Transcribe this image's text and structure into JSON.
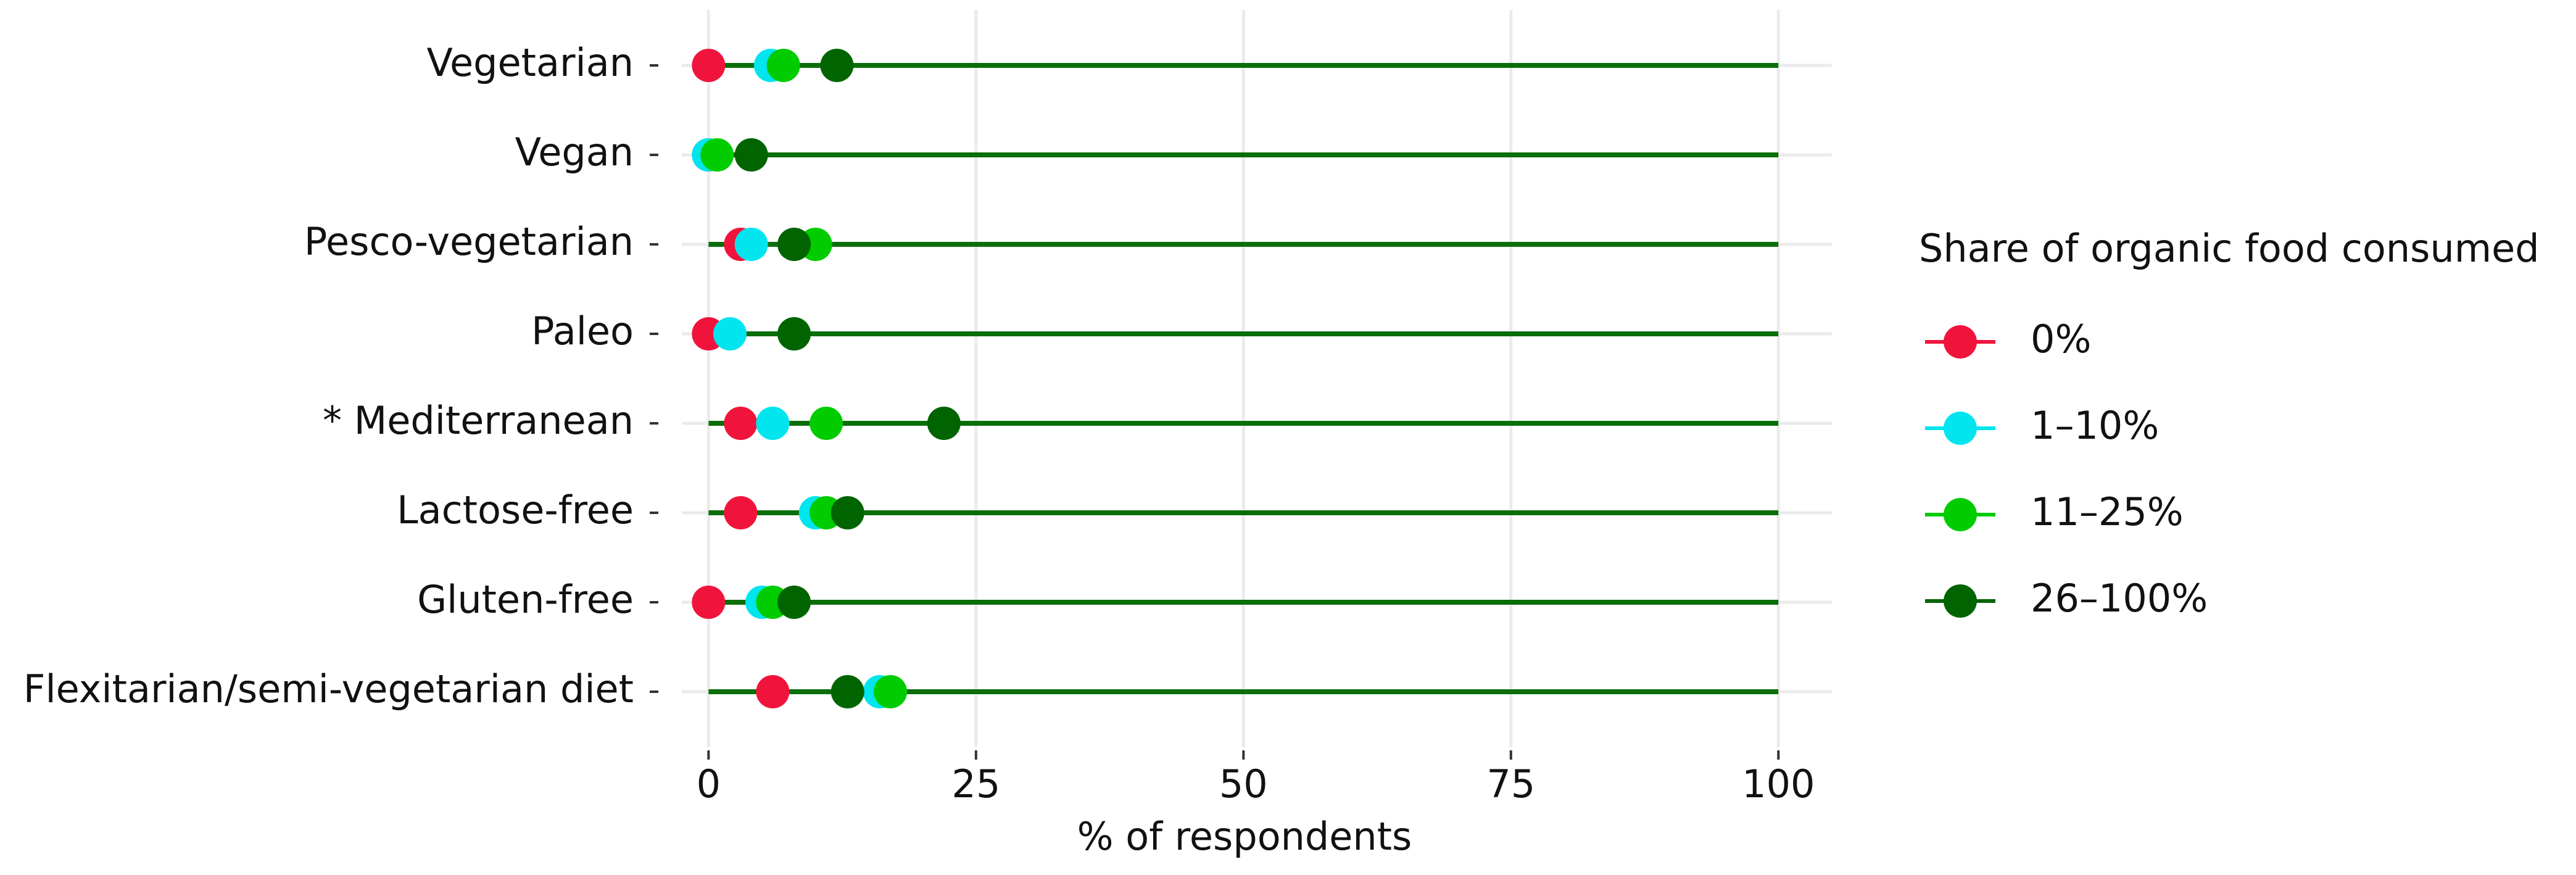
{
  "chart_data": {
    "type": "dot",
    "x_label": "% of respondents",
    "legend_title": "Share of organic food consumed",
    "categories": [
      "Vegetarian",
      "Vegan",
      "Pesco-vegetarian",
      "Paleo",
      "* Mediterranean",
      "Lactose-free",
      "Gluten-free",
      "Flexitarian/semi-vegetarian diet"
    ],
    "series": [
      {
        "name": "0%",
        "color": "#f0143c",
        "values": [
          0,
          0,
          3,
          0,
          3,
          3,
          0,
          6
        ]
      },
      {
        "name": "1–10%",
        "color": "#00e5ee",
        "values": [
          5.8,
          0,
          4,
          2,
          6,
          10,
          5,
          16
        ]
      },
      {
        "name": "11–25%",
        "color": "#00cc00",
        "values": [
          7,
          0.8,
          10,
          8,
          11,
          11,
          6,
          17
        ]
      },
      {
        "name": "26–100%",
        "color": "#006400",
        "values": [
          12,
          4,
          8,
          8,
          22,
          13,
          8,
          13
        ]
      }
    ],
    "xlim": [
      -2.5,
      105
    ],
    "xticks": [
      0,
      25,
      50,
      75,
      100
    ],
    "grid": true
  }
}
